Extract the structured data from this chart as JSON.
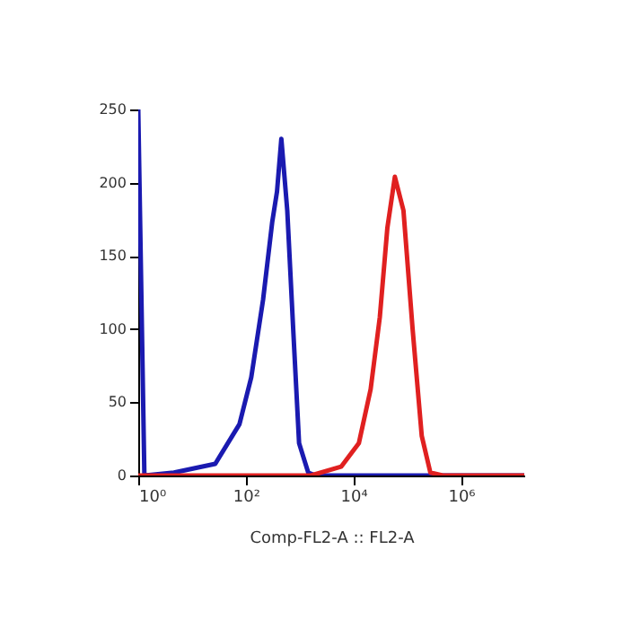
{
  "chart_data": {
    "type": "line",
    "xlabel": "Comp-FL2-A :: FL2-A",
    "log": "x",
    "xlim": [
      1,
      15000000
    ],
    "xticks": [
      {
        "value": 1,
        "label": "10⁰"
      },
      {
        "value": 100,
        "label": "10²"
      },
      {
        "value": 10000,
        "label": "10⁴"
      },
      {
        "value": 1000000,
        "label": "10⁶"
      }
    ],
    "ylim": [
      0,
      250
    ],
    "yticks": [
      0,
      50,
      100,
      150,
      200,
      250
    ],
    "grid": false,
    "legend": false,
    "marker": "none",
    "line_style": "solid",
    "series": [
      {
        "color": "#1a1ab0",
        "x": [
          1,
          1.3,
          4.6,
          27,
          76,
          126,
          209,
          309,
          380,
          457,
          589,
          759,
          977,
          1445,
          2000,
          15000000
        ],
        "values": [
          250,
          0,
          2,
          8,
          35,
          67,
          120,
          173,
          194,
          230,
          181,
          100,
          22,
          2,
          0,
          0
        ]
      },
      {
        "color": "#e02020",
        "x": [
          1,
          1622,
          5900,
          12600,
          20900,
          30900,
          42700,
          58900,
          85100,
          125900,
          186200,
          269200,
          457100,
          15000000
        ],
        "values": [
          0,
          0,
          6,
          22,
          59,
          108,
          169,
          204,
          181,
          100,
          27,
          2,
          0,
          0
        ]
      }
    ]
  }
}
